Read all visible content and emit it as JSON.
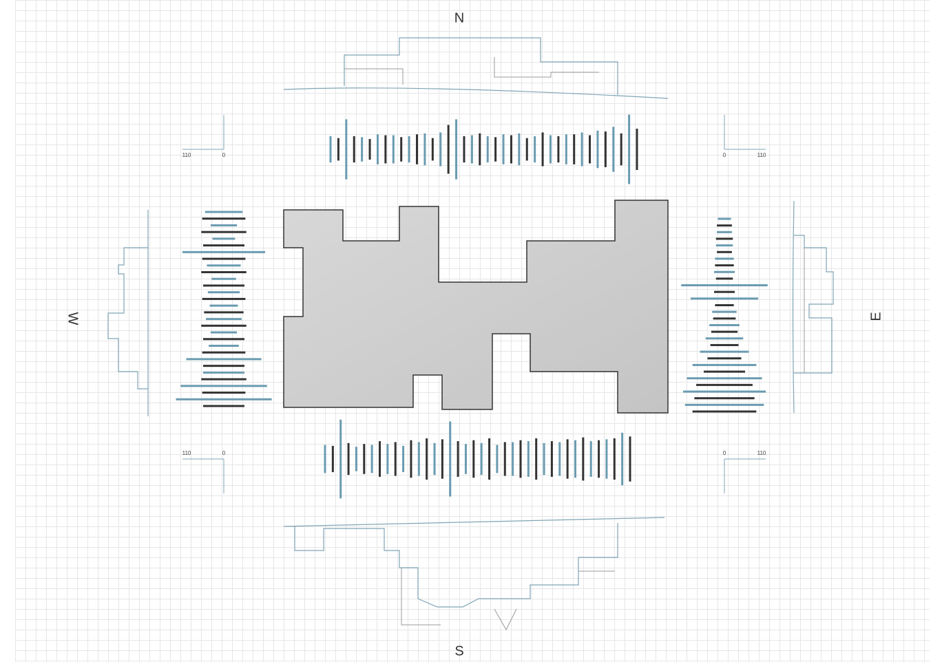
{
  "labels": {
    "north": "N",
    "south": "S",
    "west": "W",
    "east": "E"
  },
  "scale": {
    "min": 0,
    "max": 110
  },
  "colors": {
    "dark": "#333333",
    "blue": "#6a9bb0"
  },
  "strips": {
    "north": {
      "dark": [
        60,
        70,
        55,
        75,
        65,
        80,
        60,
        130,
        70,
        85,
        65,
        75,
        60,
        90,
        70,
        80,
        75,
        95,
        85,
        110
      ],
      "blue": [
        70,
        160,
        65,
        80,
        75,
        70,
        85,
        90,
        160,
        75,
        70,
        80,
        85,
        70,
        75,
        80,
        90,
        100,
        120,
        185
      ]
    },
    "south": {
      "dark": [
        70,
        85,
        80,
        95,
        90,
        100,
        110,
        105,
        95,
        100,
        110,
        90,
        100,
        110,
        95,
        105,
        115,
        100,
        110,
        120
      ],
      "blue": [
        75,
        210,
        65,
        75,
        80,
        70,
        90,
        85,
        200,
        80,
        85,
        75,
        90,
        95,
        85,
        90,
        100,
        95,
        105,
        140
      ]
    },
    "west": {
      "dark": [
        115,
        120,
        110,
        115,
        120,
        110,
        115,
        105,
        120,
        110,
        115,
        110,
        120,
        115,
        110
      ],
      "blue": [
        100,
        70,
        60,
        220,
        90,
        65,
        85,
        75,
        95,
        70,
        80,
        200,
        110,
        230,
        255
      ]
    },
    "east": {
      "dark": [
        40,
        45,
        40,
        50,
        45,
        55,
        50,
        60,
        70,
        75,
        90,
        110,
        150,
        160,
        170
      ],
      "blue": [
        35,
        40,
        45,
        50,
        55,
        230,
        180,
        65,
        80,
        100,
        130,
        170,
        200,
        220,
        210
      ]
    }
  }
}
